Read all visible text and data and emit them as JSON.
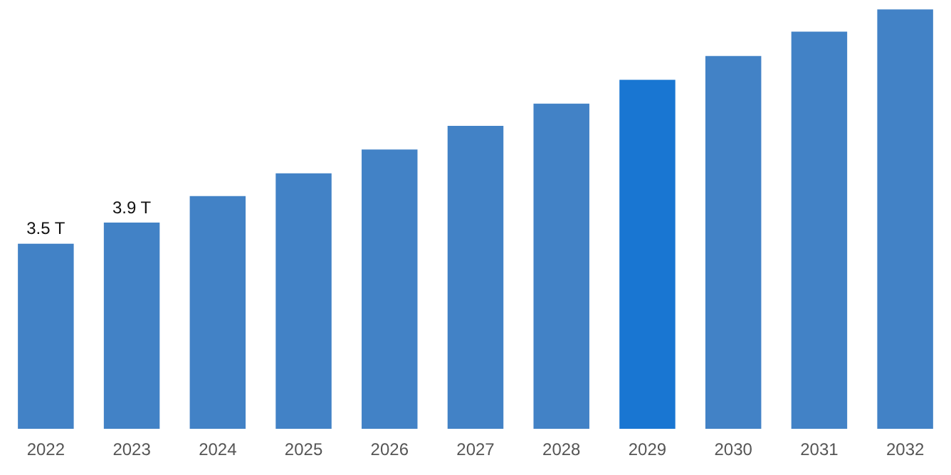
{
  "chart_data": {
    "type": "bar",
    "categories": [
      "2022",
      "2023",
      "2024",
      "2025",
      "2026",
      "2027",
      "2028",
      "2029",
      "2030",
      "2031",
      "2032"
    ],
    "values": [
      3.5,
      3.9,
      4.4,
      4.83,
      5.28,
      5.73,
      6.15,
      6.6,
      7.05,
      7.51,
      7.93
    ],
    "colors": [
      "#4282c6",
      "#4282c6",
      "#4282c6",
      "#4282c6",
      "#4282c6",
      "#4282c6",
      "#4282c6",
      "#1976d2",
      "#4282c6",
      "#4282c6",
      "#4282c6"
    ],
    "value_labels": [
      "3.5 T",
      "3.9 T",
      null,
      null,
      null,
      null,
      null,
      null,
      null,
      null,
      null
    ],
    "grid": false,
    "legend": false,
    "tick_labels": "x"
  }
}
